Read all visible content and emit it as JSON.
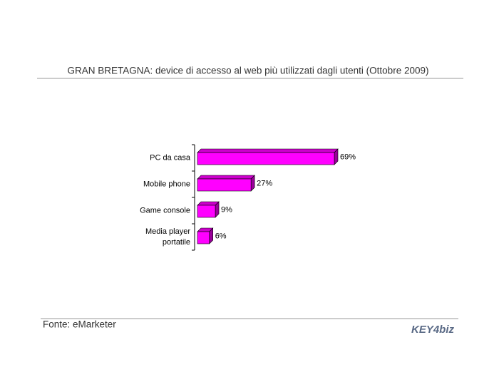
{
  "chart_data": {
    "type": "bar",
    "orientation": "horizontal",
    "title": "GRAN BRETAGNA: device di accesso al web più utilizzati dagli utenti (Ottobre 2009)",
    "categories": [
      "PC da casa",
      "Mobile phone",
      "Game console",
      "Media player portatile"
    ],
    "values": [
      69,
      27,
      9,
      6
    ],
    "value_labels": [
      "69%",
      "27%",
      "9%",
      "6%"
    ],
    "color": "#ff00ff",
    "source": "Fonte: eMarketer",
    "logo": "KEY4biz"
  }
}
